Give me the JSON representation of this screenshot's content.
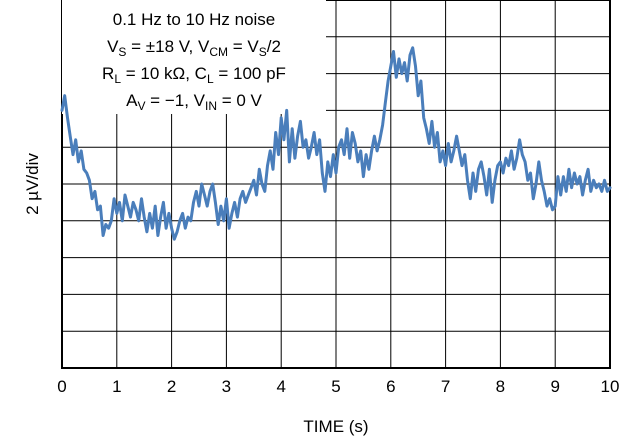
{
  "chart_data": {
    "type": "line",
    "title": "",
    "xlabel": "TIME (s)",
    "ylabel": "2 µV/div",
    "xlim": [
      0,
      10
    ],
    "ylim": [
      -5,
      5
    ],
    "x_ticks": [
      "0",
      "1",
      "2",
      "3",
      "4",
      "5",
      "6",
      "7",
      "8",
      "9",
      "10"
    ],
    "y_divisions": 10,
    "grid": true,
    "line_color": "#4a7ebb",
    "annotation": {
      "line1": "0.1 Hz to 10 Hz noise",
      "line2": {
        "v": "V",
        "s": "S",
        "mid": " = ±18 V, V",
        "cm": "CM",
        "eq": " = V",
        "s2": "S",
        "end": "/2"
      },
      "line3": "R ",
      "line3_parts": {
        "r": "R",
        "l": "L",
        "mid": " = 10 kΩ, C",
        "l2": "L",
        "end": " = 100 pF"
      },
      "line4_parts": {
        "a": "A",
        "v": "V",
        "mid": " = −1, V",
        "in": "IN",
        "end": " = 0 V"
      }
    },
    "series": [
      {
        "values": [
          [
            0.0,
            2.0
          ],
          [
            0.05,
            2.4
          ],
          [
            0.1,
            1.8
          ],
          [
            0.15,
            1.3
          ],
          [
            0.2,
            0.8
          ],
          [
            0.25,
            1.2
          ],
          [
            0.3,
            0.6
          ],
          [
            0.35,
            0.9
          ],
          [
            0.4,
            0.4
          ],
          [
            0.45,
            0.3
          ],
          [
            0.5,
            0.1
          ],
          [
            0.55,
            -0.4
          ],
          [
            0.6,
            -0.2
          ],
          [
            0.65,
            -0.7
          ],
          [
            0.7,
            -0.6
          ],
          [
            0.75,
            -1.4
          ],
          [
            0.8,
            -1.1
          ],
          [
            0.85,
            -1.2
          ],
          [
            0.9,
            -1.0
          ],
          [
            0.95,
            -0.4
          ],
          [
            1.0,
            -0.8
          ],
          [
            1.05,
            -0.5
          ],
          [
            1.1,
            -1.0
          ],
          [
            1.15,
            -0.3
          ],
          [
            1.2,
            -0.6
          ],
          [
            1.25,
            -0.9
          ],
          [
            1.3,
            -0.5
          ],
          [
            1.35,
            -0.7
          ],
          [
            1.4,
            -1.0
          ],
          [
            1.45,
            -0.4
          ],
          [
            1.5,
            -0.9
          ],
          [
            1.55,
            -1.3
          ],
          [
            1.6,
            -0.8
          ],
          [
            1.65,
            -1.2
          ],
          [
            1.7,
            -0.6
          ],
          [
            1.75,
            -1.4
          ],
          [
            1.8,
            -0.9
          ],
          [
            1.85,
            -0.5
          ],
          [
            1.9,
            -1.2
          ],
          [
            1.95,
            -0.8
          ],
          [
            2.0,
            -1.2
          ],
          [
            2.05,
            -1.5
          ],
          [
            2.1,
            -1.3
          ],
          [
            2.15,
            -1.0
          ],
          [
            2.2,
            -0.8
          ],
          [
            2.25,
            -1.2
          ],
          [
            2.3,
            -0.9
          ],
          [
            2.35,
            -1.0
          ],
          [
            2.4,
            -0.5
          ],
          [
            2.45,
            -0.2
          ],
          [
            2.5,
            -0.6
          ],
          [
            2.55,
            0.0
          ],
          [
            2.6,
            -0.3
          ],
          [
            2.65,
            -0.6
          ],
          [
            2.7,
            -0.2
          ],
          [
            2.75,
            0.0
          ],
          [
            2.8,
            -0.5
          ],
          [
            2.85,
            -1.1
          ],
          [
            2.9,
            -0.6
          ],
          [
            2.95,
            -1.0
          ],
          [
            3.0,
            -0.4
          ],
          [
            3.05,
            -1.2
          ],
          [
            3.1,
            -0.8
          ],
          [
            3.15,
            -0.5
          ],
          [
            3.2,
            -0.9
          ],
          [
            3.25,
            -0.4
          ],
          [
            3.3,
            -0.2
          ],
          [
            3.35,
            -0.5
          ],
          [
            3.4,
            -0.3
          ],
          [
            3.45,
            -0.1
          ],
          [
            3.5,
            0.1
          ],
          [
            3.55,
            -0.3
          ],
          [
            3.6,
            0.4
          ],
          [
            3.65,
            0.0
          ],
          [
            3.7,
            -0.2
          ],
          [
            3.75,
            0.5
          ],
          [
            3.8,
            0.9
          ],
          [
            3.85,
            0.4
          ],
          [
            3.9,
            1.4
          ],
          [
            3.95,
            0.8
          ],
          [
            4.0,
            1.8
          ],
          [
            4.05,
            1.2
          ],
          [
            4.1,
            2.0
          ],
          [
            4.15,
            0.6
          ],
          [
            4.2,
            1.5
          ],
          [
            4.25,
            0.7
          ],
          [
            4.3,
            1.3
          ],
          [
            4.35,
            1.7
          ],
          [
            4.4,
            1.0
          ],
          [
            4.45,
            1.2
          ],
          [
            4.5,
            0.7
          ],
          [
            4.55,
            1.0
          ],
          [
            4.6,
            1.4
          ],
          [
            4.65,
            0.8
          ],
          [
            4.7,
            1.2
          ],
          [
            4.75,
            0.3
          ],
          [
            4.8,
            -0.2
          ],
          [
            4.85,
            0.6
          ],
          [
            4.9,
            0.2
          ],
          [
            4.95,
            0.8
          ],
          [
            5.0,
            0.3
          ],
          [
            5.05,
            1.0
          ],
          [
            5.1,
            1.2
          ],
          [
            5.15,
            0.8
          ],
          [
            5.2,
            1.5
          ],
          [
            5.25,
            0.7
          ],
          [
            5.3,
            1.4
          ],
          [
            5.35,
            1.1
          ],
          [
            5.4,
            0.6
          ],
          [
            5.45,
            0.9
          ],
          [
            5.5,
            0.2
          ],
          [
            5.55,
            0.8
          ],
          [
            5.6,
            0.4
          ],
          [
            5.65,
            0.9
          ],
          [
            5.7,
            1.3
          ],
          [
            5.75,
            0.9
          ],
          [
            5.8,
            1.2
          ],
          [
            5.85,
            1.6
          ],
          [
            5.9,
            2.2
          ],
          [
            5.95,
            2.8
          ],
          [
            6.0,
            3.2
          ],
          [
            6.05,
            3.6
          ],
          [
            6.1,
            2.9
          ],
          [
            6.15,
            3.4
          ],
          [
            6.2,
            3.0
          ],
          [
            6.25,
            3.3
          ],
          [
            6.3,
            2.8
          ],
          [
            6.35,
            3.5
          ],
          [
            6.4,
            3.7
          ],
          [
            6.45,
            3.2
          ],
          [
            6.5,
            2.4
          ],
          [
            6.55,
            2.8
          ],
          [
            6.6,
            1.8
          ],
          [
            6.65,
            1.5
          ],
          [
            6.7,
            1.1
          ],
          [
            6.75,
            1.7
          ],
          [
            6.8,
            1.0
          ],
          [
            6.85,
            1.4
          ],
          [
            6.9,
            0.6
          ],
          [
            6.95,
            0.9
          ],
          [
            7.0,
            0.5
          ],
          [
            7.05,
            1.1
          ],
          [
            7.1,
            0.6
          ],
          [
            7.15,
            0.9
          ],
          [
            7.2,
            1.3
          ],
          [
            7.25,
            0.9
          ],
          [
            7.3,
            0.5
          ],
          [
            7.35,
            0.8
          ],
          [
            7.4,
            0.1
          ],
          [
            7.45,
            -0.4
          ],
          [
            7.5,
            0.3
          ],
          [
            7.55,
            -0.2
          ],
          [
            7.6,
            0.4
          ],
          [
            7.65,
            0.6
          ],
          [
            7.7,
            0.2
          ],
          [
            7.75,
            -0.3
          ],
          [
            7.8,
            0.4
          ],
          [
            7.85,
            -0.5
          ],
          [
            7.9,
            0.1
          ],
          [
            7.95,
            0.5
          ],
          [
            8.0,
            0.6
          ],
          [
            8.05,
            0.3
          ],
          [
            8.1,
            0.7
          ],
          [
            8.15,
            0.5
          ],
          [
            8.2,
            0.9
          ],
          [
            8.25,
            0.4
          ],
          [
            8.3,
            0.7
          ],
          [
            8.35,
            1.2
          ],
          [
            8.4,
            0.8
          ],
          [
            8.45,
            0.6
          ],
          [
            8.5,
            0.1
          ],
          [
            8.55,
            0.3
          ],
          [
            8.6,
            -0.4
          ],
          [
            8.65,
            0.0
          ],
          [
            8.7,
            0.6
          ],
          [
            8.75,
            0.1
          ],
          [
            8.8,
            -0.2
          ],
          [
            8.85,
            -0.6
          ],
          [
            8.9,
            -0.4
          ],
          [
            8.95,
            -0.7
          ],
          [
            9.0,
            -0.6
          ],
          [
            9.05,
            0.2
          ],
          [
            9.1,
            -0.3
          ],
          [
            9.15,
            0.2
          ],
          [
            9.2,
            -0.2
          ],
          [
            9.25,
            0.4
          ],
          [
            9.3,
            -0.1
          ],
          [
            9.35,
            0.3
          ],
          [
            9.4,
            0.0
          ],
          [
            9.45,
            0.2
          ],
          [
            9.5,
            -0.3
          ],
          [
            9.55,
            0.1
          ],
          [
            9.6,
            0.4
          ],
          [
            9.65,
            -0.2
          ],
          [
            9.7,
            0.1
          ],
          [
            9.75,
            -0.1
          ],
          [
            9.8,
            0.0
          ],
          [
            9.85,
            -0.2
          ],
          [
            9.9,
            0.1
          ],
          [
            9.95,
            -0.2
          ],
          [
            10.0,
            -0.1
          ]
        ]
      }
    ]
  }
}
